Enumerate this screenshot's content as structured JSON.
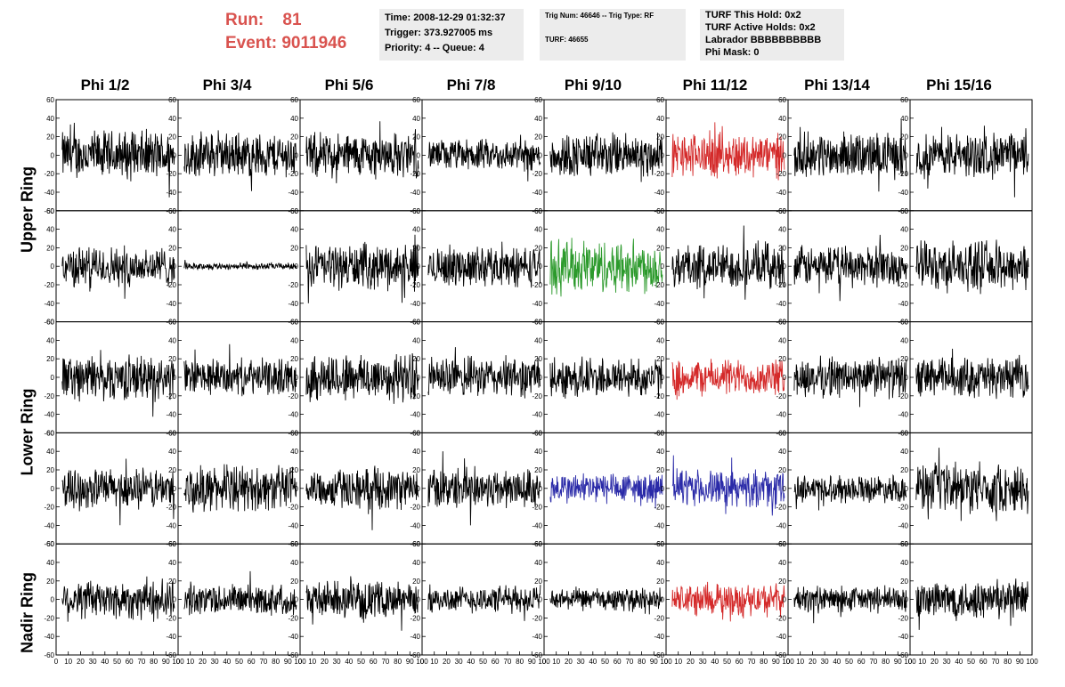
{
  "header": {
    "run_label": "Run:",
    "run_value": "81",
    "event_label": "Event:",
    "event_value": "9011946",
    "time_line": "Time: 2008-12-29 01:32:37",
    "trigger_line": "Trigger: 373.927005 ms",
    "priority_line": "Priority: 4 -- Queue: 4",
    "trig_line": "Trig Num: 46646 -- Trig Type: RF",
    "turf_line": "TURF: 46655",
    "turf_hold": "TURF This Hold: 0x2",
    "turf_active": "TURF Active Holds: 0x2",
    "labrador": "Labrador BBBBBBBBBB",
    "phi_mask": "Phi Mask: 0"
  },
  "columns": [
    "Phi 1/2",
    "Phi 3/4",
    "Phi 5/6",
    "Phi 7/8",
    "Phi 9/10",
    "Phi 11/12",
    "Phi 13/14",
    "Phi 15/16"
  ],
  "ring_labels": [
    "Upper Ring",
    "Lower Ring",
    "Nadir Ring"
  ],
  "colors": {
    "normal": "#000000",
    "red": "#d42a2a",
    "green": "#2c9a2c",
    "blue": "#2a2aa8",
    "run_text": "#d9534f",
    "info_bg": "#ececec"
  },
  "chart_data": {
    "type": "line",
    "x_range": [
      0,
      100
    ],
    "y_range": [
      -60,
      60
    ],
    "y_ticks": [
      60,
      40,
      20,
      0,
      -20,
      -40,
      -60
    ],
    "x_ticks": [
      0,
      10,
      20,
      30,
      40,
      50,
      60,
      70,
      80,
      90,
      100
    ],
    "rows": 5,
    "cols": 8,
    "panel_color_map": [
      [
        "normal",
        "normal",
        "normal",
        "normal",
        "normal",
        "red",
        "normal",
        "normal"
      ],
      [
        "normal",
        "normal",
        "normal",
        "normal",
        "green",
        "normal",
        "normal",
        "normal"
      ],
      [
        "normal",
        "normal",
        "normal",
        "normal",
        "normal",
        "red",
        "normal",
        "normal"
      ],
      [
        "normal",
        "normal",
        "normal",
        "normal",
        "blue",
        "blue",
        "normal",
        "normal"
      ],
      [
        "normal",
        "normal",
        "normal",
        "normal",
        "normal",
        "red",
        "normal",
        "normal"
      ]
    ],
    "panel_amplitude": [
      [
        22,
        20,
        20,
        14,
        20,
        20,
        20,
        20
      ],
      [
        18,
        3,
        20,
        18,
        24,
        20,
        18,
        22
      ],
      [
        20,
        16,
        22,
        18,
        18,
        16,
        18,
        18
      ],
      [
        18,
        20,
        18,
        18,
        14,
        16,
        12,
        22
      ],
      [
        18,
        14,
        16,
        12,
        10,
        14,
        12,
        18
      ]
    ]
  }
}
